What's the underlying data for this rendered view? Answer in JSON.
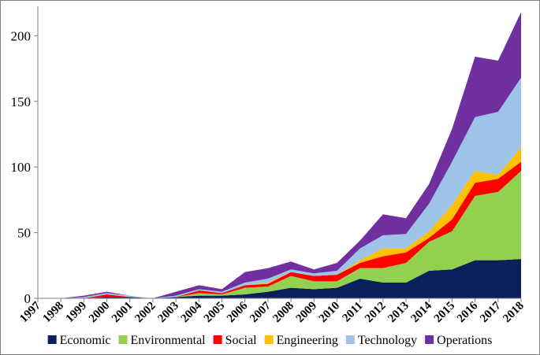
{
  "chart_data": {
    "type": "area",
    "stacked": true,
    "x": [
      "1997",
      "1998",
      "1999",
      "2000",
      "2001",
      "2002",
      "2003",
      "2004",
      "2005",
      "2006",
      "2007",
      "2008",
      "2009",
      "2010",
      "2011",
      "2012",
      "2013",
      "2014",
      "2015",
      "2016",
      "2017",
      "2018"
    ],
    "ylim": [
      0,
      220
    ],
    "yticks": [
      0,
      50,
      100,
      150,
      200
    ],
    "grid": false,
    "legend_position": "bottom",
    "series": [
      {
        "name": "Economic",
        "color": "#0b1f5b",
        "values": [
          0,
          0,
          0,
          1,
          1,
          0,
          1,
          2,
          2,
          3,
          5,
          8,
          7,
          8,
          15,
          12,
          12,
          21,
          22,
          29,
          29,
          30
        ]
      },
      {
        "name": "Environmental",
        "color": "#92d050",
        "values": [
          0,
          0,
          0,
          0,
          0,
          0,
          0,
          2,
          1,
          5,
          4,
          9,
          6,
          5,
          8,
          11,
          15,
          22,
          29,
          49,
          52,
          67
        ]
      },
      {
        "name": "Social",
        "color": "#ff0000",
        "values": [
          0,
          0,
          0,
          2,
          0,
          0,
          0,
          2,
          1,
          2,
          2,
          3,
          4,
          5,
          4,
          9,
          8,
          3,
          9,
          10,
          10,
          7
        ]
      },
      {
        "name": "Engineering",
        "color": "#ffc000",
        "values": [
          0,
          0,
          0,
          0,
          0,
          0,
          0,
          0,
          0,
          0,
          1,
          0,
          0,
          0,
          2,
          6,
          3,
          5,
          11,
          9,
          3,
          11
        ]
      },
      {
        "name": "Technology",
        "color": "#9dc3e6",
        "values": [
          0,
          0,
          1,
          1,
          1,
          0,
          1,
          1,
          1,
          2,
          3,
          2,
          2,
          3,
          9,
          10,
          11,
          21,
          33,
          41,
          48,
          53
        ]
      },
      {
        "name": "Operations",
        "color": "#7030a0",
        "values": [
          0,
          0,
          1,
          1,
          0,
          0,
          3,
          3,
          2,
          8,
          8,
          6,
          3,
          6,
          6,
          16,
          12,
          15,
          25,
          46,
          39,
          50
        ]
      }
    ]
  }
}
